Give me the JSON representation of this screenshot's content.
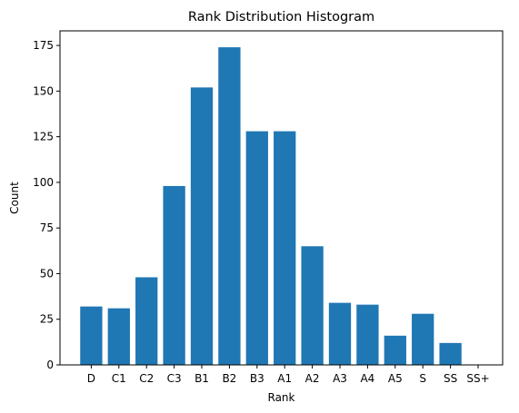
{
  "chart_data": {
    "type": "bar",
    "title": "Rank Distribution Histogram",
    "xlabel": "Rank",
    "ylabel": "Count",
    "categories": [
      "D",
      "C1",
      "C2",
      "C3",
      "B1",
      "B2",
      "B3",
      "A1",
      "A2",
      "A3",
      "A4",
      "A5",
      "S",
      "SS",
      "SS+"
    ],
    "values": [
      32,
      31,
      48,
      98,
      152,
      174,
      128,
      128,
      65,
      34,
      33,
      16,
      28,
      12,
      0
    ],
    "ylim": [
      0,
      183
    ],
    "yticks": [
      0,
      25,
      50,
      75,
      100,
      125,
      150,
      175
    ],
    "bar_color": "#1f77b4",
    "grid": false,
    "legend": "none"
  }
}
